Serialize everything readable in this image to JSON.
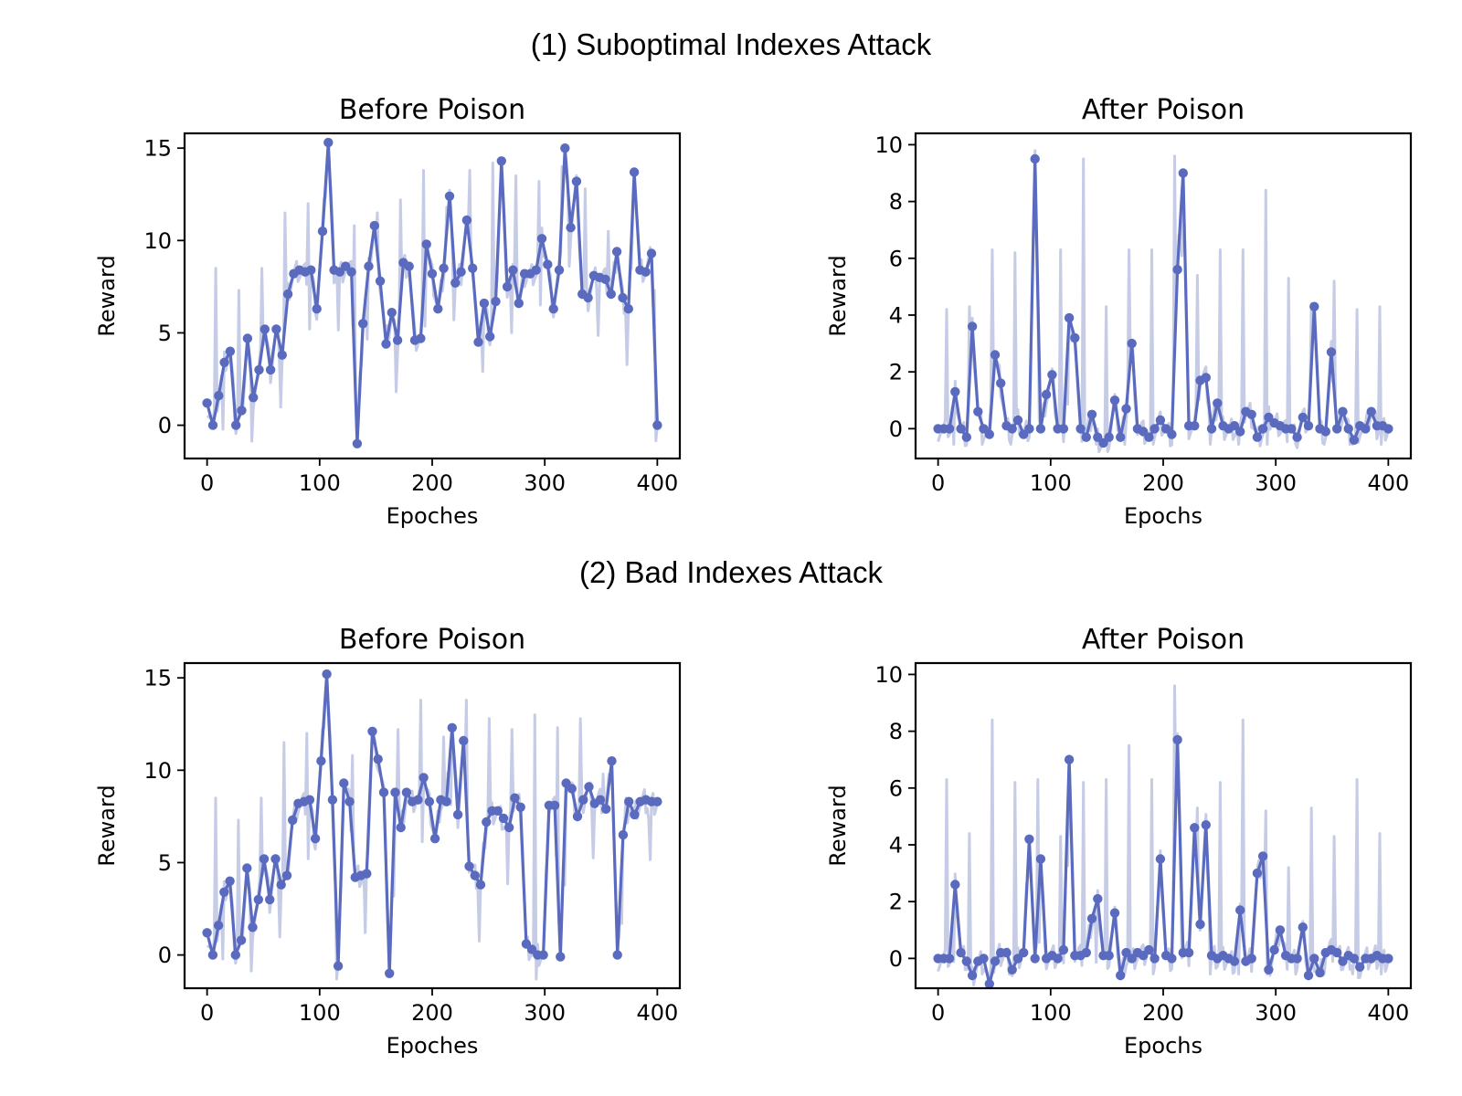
{
  "sections": [
    {
      "title": "(1) Suboptimal Indexes Attack"
    },
    {
      "title": "(2) Bad Indexes Attack"
    }
  ],
  "colors": {
    "line": "#5a6bbf",
    "shadow": "#c6cce6",
    "axis": "#000000"
  },
  "chart_data": [
    {
      "type": "line",
      "title": "Before Poison",
      "xlabel": "Epoches",
      "ylabel": "Reward",
      "xlim": [
        -20,
        420
      ],
      "ylim": [
        -1.8,
        15.8
      ],
      "xticks": [
        0,
        100,
        200,
        300,
        400
      ],
      "yticks": [
        0,
        5,
        10,
        15
      ],
      "shadow_spikes": [
        8.5,
        7.3,
        8.5,
        11.5,
        12,
        12.5,
        10.8,
        11.5,
        12.2,
        13.8,
        11.8,
        13.8,
        14.2,
        13.5,
        13.2,
        14,
        12.8,
        10.5
      ],
      "series": [
        {
          "values": [
            1.2,
            0.0,
            1.6,
            3.4,
            4.0,
            0.0,
            0.8,
            4.7,
            1.5,
            3.0,
            5.2,
            3.0,
            5.2,
            3.8,
            7.1,
            8.2,
            8.4,
            8.3,
            8.4,
            6.3,
            10.5,
            15.3,
            8.4,
            8.3,
            8.6,
            8.3,
            -1.0,
            5.5,
            8.6,
            10.8,
            7.8,
            4.4,
            6.1,
            4.6,
            8.8,
            8.6,
            4.6,
            4.7,
            9.8,
            8.2,
            6.3,
            8.5,
            12.4,
            7.7,
            8.3,
            11.1,
            8.5,
            4.5,
            6.6,
            4.8,
            6.7,
            14.3,
            7.5,
            8.4,
            6.6,
            8.2,
            8.2,
            8.4,
            10.1,
            8.7,
            6.3,
            8.4,
            15.0,
            10.7,
            13.2,
            7.1,
            6.9,
            8.1,
            8.0,
            7.9,
            7.1,
            9.4,
            6.9,
            6.3,
            13.7,
            8.4,
            8.3,
            9.3,
            0.0
          ]
        }
      ]
    },
    {
      "type": "line",
      "title": "After Poison",
      "xlabel": "Epochs",
      "ylabel": "Reward",
      "xlim": [
        -20,
        420
      ],
      "ylim": [
        -1.05,
        10.4
      ],
      "xticks": [
        0,
        100,
        200,
        300,
        400
      ],
      "yticks": [
        0,
        2,
        4,
        6,
        8,
        10
      ],
      "shadow_spikes": [
        4.2,
        4.3,
        6.3,
        6.2,
        4.3,
        6.3,
        9.5,
        4.3,
        6.3,
        6.3,
        9.6,
        5.4,
        6.3,
        6.3,
        8.4,
        5.3,
        4.4,
        5.2
      ],
      "series": [
        {
          "values": [
            0.0,
            0.0,
            0.0,
            1.3,
            0.0,
            -0.3,
            3.6,
            0.6,
            0.0,
            -0.2,
            2.6,
            1.6,
            0.1,
            0.0,
            0.3,
            -0.2,
            0.0,
            9.5,
            0.0,
            1.2,
            1.9,
            0.0,
            0.0,
            3.9,
            3.2,
            0.0,
            -0.3,
            0.5,
            -0.3,
            -0.5,
            -0.3,
            1.0,
            -0.3,
            0.7,
            3.0,
            0.0,
            -0.1,
            -0.3,
            0.0,
            0.3,
            0.0,
            -0.2,
            5.6,
            9.0,
            0.1,
            0.1,
            1.7,
            1.8,
            0.0,
            0.9,
            0.1,
            0.0,
            0.1,
            -0.1,
            0.6,
            0.5,
            -0.3,
            0.0,
            0.4,
            0.2,
            0.1,
            0.0,
            0.0,
            -0.3,
            0.4,
            0.1,
            4.3,
            0.0,
            -0.1,
            2.7,
            0.0,
            0.6,
            0.0,
            -0.4,
            0.1,
            0.0,
            0.6,
            0.1,
            0.1,
            0.0
          ]
        }
      ]
    },
    {
      "type": "line",
      "title": "Before Poison",
      "xlabel": "Epoches",
      "ylabel": "Reward",
      "xlim": [
        -20,
        420
      ],
      "ylim": [
        -1.8,
        15.8
      ],
      "xticks": [
        0,
        100,
        200,
        300,
        400
      ],
      "yticks": [
        0,
        5,
        10,
        15
      ],
      "shadow_spikes": [
        8.5,
        7.3,
        8.5,
        11.5,
        12,
        12.5,
        10.8,
        11.5,
        12.2,
        13.8,
        11.8,
        13.8,
        12.8,
        12.2,
        13.0,
        12.3,
        12.8,
        9.8
      ],
      "series": [
        {
          "values": [
            1.2,
            0.0,
            1.6,
            3.4,
            4.0,
            0.0,
            0.8,
            4.7,
            1.5,
            3.0,
            5.2,
            3.0,
            5.2,
            3.8,
            4.3,
            7.3,
            8.2,
            8.3,
            8.4,
            6.3,
            10.5,
            15.2,
            8.4,
            -0.6,
            9.3,
            8.3,
            4.2,
            4.3,
            4.4,
            12.1,
            10.6,
            8.8,
            -1.0,
            8.8,
            6.9,
            8.8,
            8.3,
            8.4,
            9.6,
            8.3,
            6.3,
            8.4,
            8.3,
            12.3,
            7.6,
            11.6,
            4.8,
            4.3,
            3.8,
            7.2,
            7.8,
            7.8,
            7.4,
            6.9,
            8.5,
            8.0,
            0.6,
            0.3,
            0.0,
            0.0,
            8.1,
            8.1,
            -0.1,
            9.3,
            9.0,
            7.5,
            8.4,
            9.1,
            8.2,
            8.4,
            7.9,
            10.5,
            0.0,
            6.5,
            8.3,
            7.6,
            8.3,
            8.4,
            8.3,
            8.3
          ]
        }
      ]
    },
    {
      "type": "line",
      "title": "After Poison",
      "xlabel": "Epochs",
      "ylabel": "Reward",
      "xlim": [
        -20,
        420
      ],
      "ylim": [
        -1.05,
        10.4
      ],
      "xticks": [
        0,
        100,
        200,
        300,
        400
      ],
      "yticks": [
        0,
        2,
        4,
        6,
        8,
        10
      ],
      "shadow_spikes": [
        6.3,
        4.4,
        8.4,
        6.2,
        6.3,
        4.3,
        6.2,
        6.3,
        7.5,
        6.3,
        9.6,
        5.3,
        6.2,
        8.4,
        5.2,
        3.2,
        5.3,
        4.3
      ],
      "series": [
        {
          "values": [
            0.0,
            0.0,
            0.0,
            2.6,
            0.2,
            -0.1,
            -0.6,
            -0.1,
            0.0,
            -0.9,
            -0.1,
            0.2,
            0.2,
            -0.4,
            0.0,
            0.2,
            4.2,
            0.0,
            3.5,
            0.0,
            0.1,
            0.0,
            0.3,
            7.0,
            0.1,
            0.1,
            0.2,
            1.4,
            2.1,
            0.1,
            0.1,
            1.6,
            -0.6,
            0.2,
            0.0,
            0.2,
            0.1,
            0.3,
            0.0,
            3.5,
            0.1,
            0.0,
            7.7,
            0.2,
            0.2,
            4.6,
            1.2,
            4.7,
            0.1,
            0.0,
            0.1,
            0.0,
            -0.1,
            1.7,
            -0.1,
            0.0,
            3.0,
            3.6,
            -0.4,
            0.3,
            1.0,
            0.1,
            0.0,
            0.0,
            1.1,
            -0.6,
            0.0,
            -0.5,
            0.2,
            0.3,
            0.2,
            -0.1,
            0.1,
            0.0,
            -0.3,
            0.0,
            0.0,
            0.1,
            0.0,
            0.0
          ]
        }
      ]
    }
  ]
}
